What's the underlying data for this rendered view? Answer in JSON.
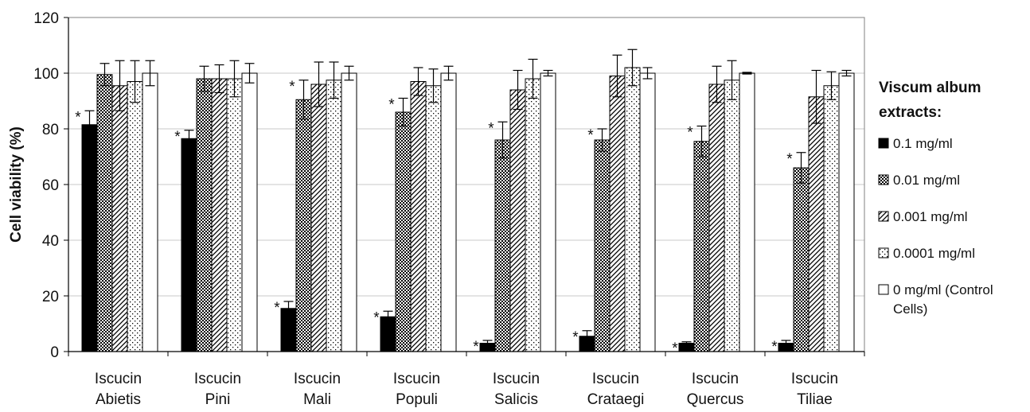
{
  "chart_data": {
    "type": "bar",
    "title": "",
    "xlabel": "",
    "ylabel": "Cell viability (%)",
    "ylim": [
      0,
      120
    ],
    "yticks": [
      0,
      20,
      40,
      60,
      80,
      100,
      120
    ],
    "grid": true,
    "legend_position": "right",
    "categories": [
      [
        "Iscucin",
        "Abietis"
      ],
      [
        "Iscucin",
        "Pini"
      ],
      [
        "Iscucin",
        "Mali"
      ],
      [
        "Iscucin",
        "Populi"
      ],
      [
        "Iscucin",
        "Salicis"
      ],
      [
        "Iscucin",
        "Crataegi"
      ],
      [
        "Iscucin",
        "Quercus"
      ],
      [
        "Iscucin",
        "Tiliae"
      ]
    ],
    "legend": {
      "title_lines": [
        "Viscum album",
        "extracts:"
      ],
      "entries": [
        [
          "0.1 mg/ml"
        ],
        [
          "0.01 mg/ml"
        ],
        [
          "0.001 mg/ml"
        ],
        [
          "0.0001 mg/ml"
        ],
        [
          "0 mg/ml (Control",
          "Cells)"
        ]
      ]
    },
    "series": [
      {
        "name": "0.1 mg/ml",
        "pattern": "solid",
        "values": [
          81.5,
          76.5,
          15.5,
          12.5,
          3,
          5.5,
          3,
          3
        ],
        "errors": [
          5,
          3,
          2.5,
          2,
          1,
          2,
          0.5,
          1
        ]
      },
      {
        "name": "0.01 mg/ml",
        "pattern": "dense-dots",
        "values": [
          99.5,
          98,
          90.5,
          86,
          76,
          76,
          75.5,
          66
        ],
        "errors": [
          4,
          4.5,
          7,
          5,
          6.5,
          4,
          5.5,
          5.5
        ]
      },
      {
        "name": "0.001 mg/ml",
        "pattern": "diagonal",
        "values": [
          95.5,
          98,
          96,
          97,
          94,
          99,
          96,
          91.5
        ],
        "errors": [
          9,
          5,
          8,
          5,
          7,
          7.5,
          6.5,
          9.5
        ]
      },
      {
        "name": "0.0001 mg/ml",
        "pattern": "sparse-dots",
        "values": [
          97,
          98,
          97.5,
          95.5,
          98,
          102,
          97.5,
          95.5
        ],
        "errors": [
          7.5,
          6.5,
          6.5,
          6,
          7,
          6.5,
          7,
          5
        ]
      },
      {
        "name": "0 mg/ml (Control Cells)",
        "pattern": "white",
        "values": [
          100,
          100,
          100,
          100,
          100,
          100,
          100,
          100
        ],
        "errors": [
          4.5,
          3.5,
          2.5,
          2.5,
          1,
          2,
          0.3,
          1
        ]
      }
    ],
    "annotations": [
      {
        "text": "*",
        "category": 0,
        "series": 0
      },
      {
        "text": "*",
        "category": 1,
        "series": 0
      },
      {
        "text": "*",
        "category": 2,
        "series": 0
      },
      {
        "text": "*",
        "category": 2,
        "series": 1
      },
      {
        "text": "*",
        "category": 3,
        "series": 0
      },
      {
        "text": "*",
        "category": 3,
        "series": 1
      },
      {
        "text": "*",
        "category": 4,
        "series": 0
      },
      {
        "text": "*",
        "category": 4,
        "series": 1
      },
      {
        "text": "*",
        "category": 5,
        "series": 0
      },
      {
        "text": "*",
        "category": 5,
        "series": 1
      },
      {
        "text": "*",
        "category": 6,
        "series": 0
      },
      {
        "text": "*",
        "category": 6,
        "series": 1
      },
      {
        "text": "*",
        "category": 7,
        "series": 0
      },
      {
        "text": "*",
        "category": 7,
        "series": 1
      }
    ]
  }
}
